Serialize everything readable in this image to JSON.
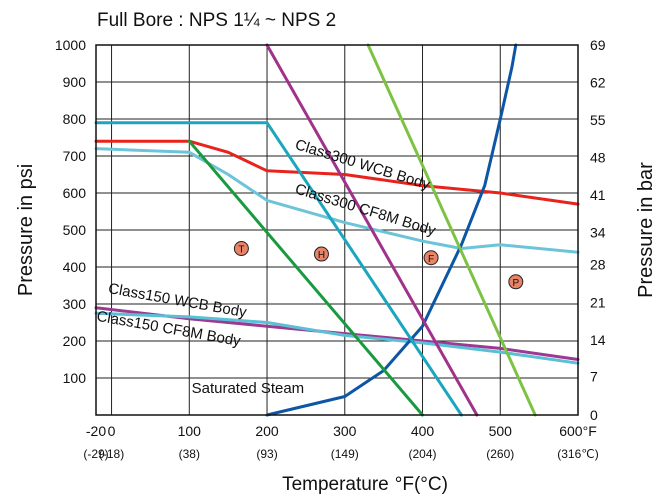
{
  "chart_data": {
    "type": "line",
    "title": "Full Bore : NPS 1¼ ~ NPS  2",
    "xlabel": "Temperature",
    "xlabel_unit": "°F(°C)",
    "ylabel": "Pressure in psi",
    "ylabel_right": "Pressure in bar",
    "xlim": [
      -20,
      600
    ],
    "ylim": [
      0,
      1000
    ],
    "grid": true,
    "x_ticks": [
      {
        "value": -20,
        "label": "-20",
        "celsius": "(-29)"
      },
      {
        "value": 0,
        "label": "0",
        "celsius": "(-18)"
      },
      {
        "value": 100,
        "label": "100",
        "celsius": "(38)"
      },
      {
        "value": 200,
        "label": "200",
        "celsius": "(93)"
      },
      {
        "value": 300,
        "label": "300",
        "celsius": "(149)"
      },
      {
        "value": 400,
        "label": "400",
        "celsius": "(204)"
      },
      {
        "value": 500,
        "label": "500",
        "celsius": "(260)"
      },
      {
        "value": 600,
        "label": "600°F",
        "celsius": "(316℃)"
      }
    ],
    "y_ticks": [
      {
        "value": 100,
        "label": "100"
      },
      {
        "value": 200,
        "label": "200"
      },
      {
        "value": 300,
        "label": "300"
      },
      {
        "value": 400,
        "label": "400"
      },
      {
        "value": 500,
        "label": "500"
      },
      {
        "value": 600,
        "label": "600"
      },
      {
        "value": 700,
        "label": "700"
      },
      {
        "value": 800,
        "label": "800"
      },
      {
        "value": 900,
        "label": "900"
      },
      {
        "value": 1000,
        "label": "1000"
      }
    ],
    "y_ticks_right": [
      {
        "value": 0,
        "label": "0"
      },
      {
        "value": 103.4,
        "label": "7"
      },
      {
        "value": 203.1,
        "label": "14"
      },
      {
        "value": 304.6,
        "label": "21"
      },
      {
        "value": 406.2,
        "label": "28"
      },
      {
        "value": 493.1,
        "label": "34"
      },
      {
        "value": 594.6,
        "label": "41"
      },
      {
        "value": 696.2,
        "label": "48"
      },
      {
        "value": 797.7,
        "label": "55"
      },
      {
        "value": 899.2,
        "label": "62"
      },
      {
        "value": 1000,
        "label": "69"
      }
    ],
    "series": [
      {
        "name": "Class300 WCB Body",
        "color": "#e8221c",
        "x": [
          -20,
          100,
          150,
          200,
          300,
          400,
          500,
          600
        ],
        "y": [
          740,
          740,
          710,
          660,
          650,
          620,
          600,
          570
        ]
      },
      {
        "name": "Class300 CF8M Body",
        "color": "#6dc4d8",
        "x": [
          -20,
          100,
          150,
          200,
          300,
          400,
          450,
          500,
          600
        ],
        "y": [
          720,
          710,
          650,
          580,
          520,
          470,
          450,
          460,
          440
        ]
      },
      {
        "name": "Class150 WCB Body",
        "color": "#9a3a92",
        "x": [
          -20,
          100,
          200,
          300,
          400,
          500,
          600
        ],
        "y": [
          290,
          260,
          240,
          220,
          200,
          180,
          150
        ]
      },
      {
        "name": "Class150 CF8M Body",
        "color": "#5bbfd6",
        "x": [
          -20,
          100,
          200,
          300,
          400,
          500,
          600
        ],
        "y": [
          275,
          265,
          250,
          215,
          195,
          170,
          140
        ]
      },
      {
        "name": "Saturated Steam",
        "color": "#0d56a5",
        "x": [
          200,
          300,
          350,
          400,
          450,
          480,
          500,
          515,
          520
        ],
        "y": [
          0,
          50,
          120,
          240,
          460,
          620,
          800,
          940,
          1000
        ]
      },
      {
        "name": "T",
        "color": "#1a9a3e",
        "x": [
          100,
          400
        ],
        "y": [
          740,
          0
        ]
      },
      {
        "name": "H",
        "color": "#1aa6be",
        "x": [
          -20,
          200,
          450
        ],
        "y": [
          790,
          790,
          0
        ]
      },
      {
        "name": "F",
        "color": "#a0328a",
        "x": [
          200,
          470
        ],
        "y": [
          1000,
          0
        ]
      },
      {
        "name": "P",
        "color": "#7dc242",
        "x": [
          330,
          545
        ],
        "y": [
          1000,
          0
        ]
      }
    ],
    "annotations": [
      {
        "text": "Class300 WCB Body",
        "x": 235,
        "y": 720,
        "rotate": 17
      },
      {
        "text": "Class300 CF8M Body",
        "x": 235,
        "y": 600,
        "rotate": 17
      },
      {
        "text": "Class150 WCB Body",
        "x": -5,
        "y": 330,
        "rotate": 10
      },
      {
        "text": "Class150 CF8M Body",
        "x": -20,
        "y": 255,
        "rotate": 10
      },
      {
        "text": "Saturated Steam",
        "x": 103,
        "y": 60,
        "rotate": 0
      }
    ],
    "markers": [
      {
        "label": "T",
        "x": 167,
        "y": 450
      },
      {
        "label": "H",
        "x": 270,
        "y": 435
      },
      {
        "label": "F",
        "x": 411,
        "y": 425
      },
      {
        "label": "P",
        "x": 520,
        "y": 360
      }
    ]
  }
}
